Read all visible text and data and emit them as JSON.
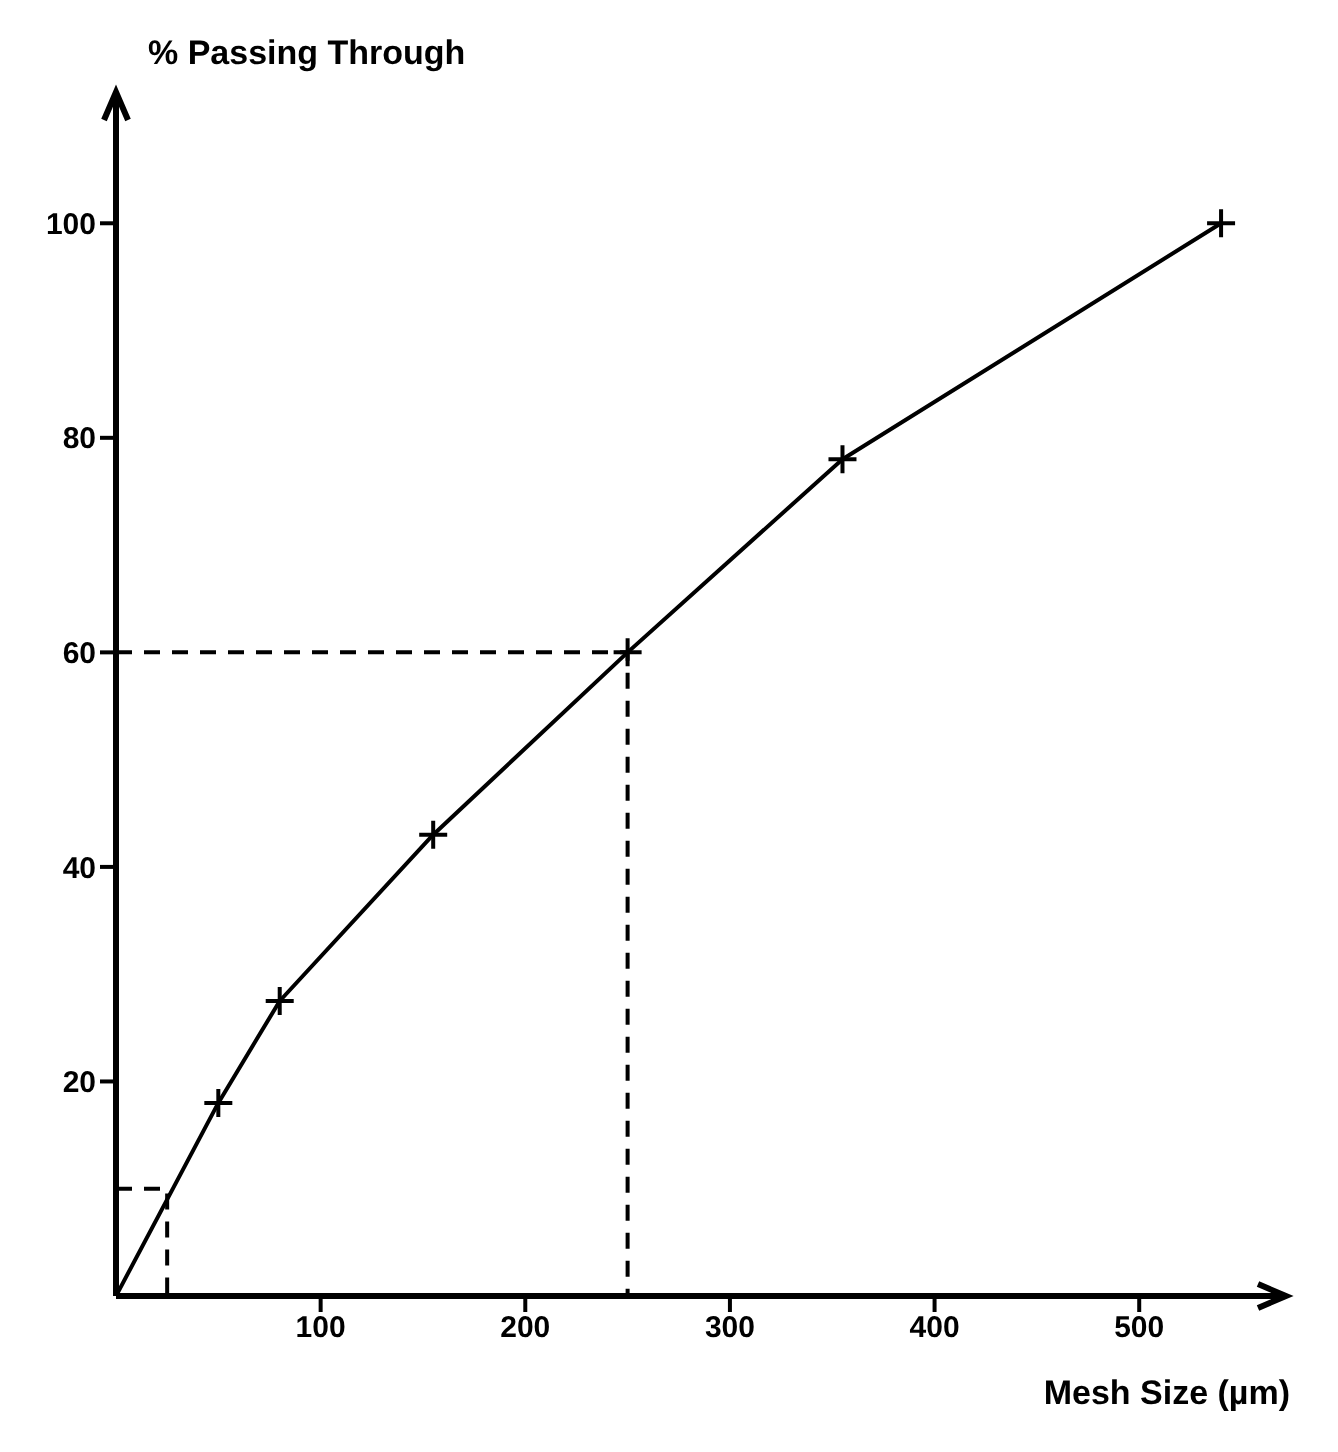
{
  "chart_data": {
    "type": "line",
    "xlabel": "Mesh Size (µm)",
    "ylabel": "% Passing Through",
    "xlim": [
      0,
      560
    ],
    "ylim": [
      0,
      110
    ],
    "xticks": [
      100,
      200,
      300,
      400,
      500
    ],
    "yticks": [
      20,
      40,
      60,
      80,
      100
    ],
    "series": [
      {
        "color": "#000000",
        "x": [
          0,
          50,
          80,
          155,
          250,
          355,
          540
        ],
        "values": [
          0,
          18,
          27.5,
          43,
          60,
          78,
          100
        ],
        "marker": "cross",
        "line_style": "solid"
      },
      {
        "color": "#000000",
        "x": [
          0,
          250,
          250
        ],
        "values": [
          60,
          60,
          0
        ],
        "marker": "none",
        "line_style": "dashed"
      },
      {
        "color": "#000000",
        "x": [
          0,
          25,
          25
        ],
        "values": [
          10,
          10,
          0
        ],
        "marker": "none",
        "line_style": "dashed"
      }
    ]
  }
}
